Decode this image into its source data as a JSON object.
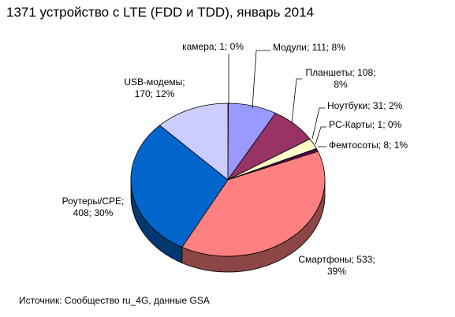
{
  "chart_data": {
    "type": "pie",
    "title": "1371 устройство с LTE  (FDD и TDD), январь 2014",
    "source": "Источник: Сообщество ru_4G, данные GSA",
    "slices": [
      {
        "name": "камера",
        "value": 1,
        "percent": "0%",
        "color": "#2b2b66",
        "label_lines": [
          "камера; 1; 0%"
        ]
      },
      {
        "name": "Модули",
        "value": 111,
        "percent": "8%",
        "color": "#9999ff",
        "label_lines": [
          "Модули; 111; 8%"
        ]
      },
      {
        "name": "Планшеты",
        "value": 108,
        "percent": "8%",
        "color": "#993366",
        "label_lines": [
          "Планшеты; 108;",
          "8%"
        ]
      },
      {
        "name": "Ноутбуки",
        "value": 31,
        "percent": "2%",
        "color": "#ffffcc",
        "label_lines": [
          "Ноутбуки; 31; 2%"
        ]
      },
      {
        "name": "PC-Карты",
        "value": 1,
        "percent": "0%",
        "color": "#ccffff",
        "label_lines": [
          "PC-Карты; 1; 0%"
        ]
      },
      {
        "name": "Фемтосоты",
        "value": 8,
        "percent": "1%",
        "color": "#660066",
        "label_lines": [
          "Фемтосоты; 8; 1%"
        ]
      },
      {
        "name": "Смартфоны",
        "value": 533,
        "percent": "39%",
        "color": "#ff8080",
        "label_lines": [
          "Смартфоны; 533;",
          "39%"
        ]
      },
      {
        "name": "Роутеры/CPE",
        "value": 408,
        "percent": "30%",
        "color": "#0066cc",
        "label_lines": [
          "Роутеры/CPE;",
          "408; 30%"
        ]
      },
      {
        "name": "USB-модемы",
        "value": 170,
        "percent": "12%",
        "color": "#ccccff",
        "label_lines": [
          "USB-модемы;",
          "170; 12%"
        ]
      }
    ]
  }
}
